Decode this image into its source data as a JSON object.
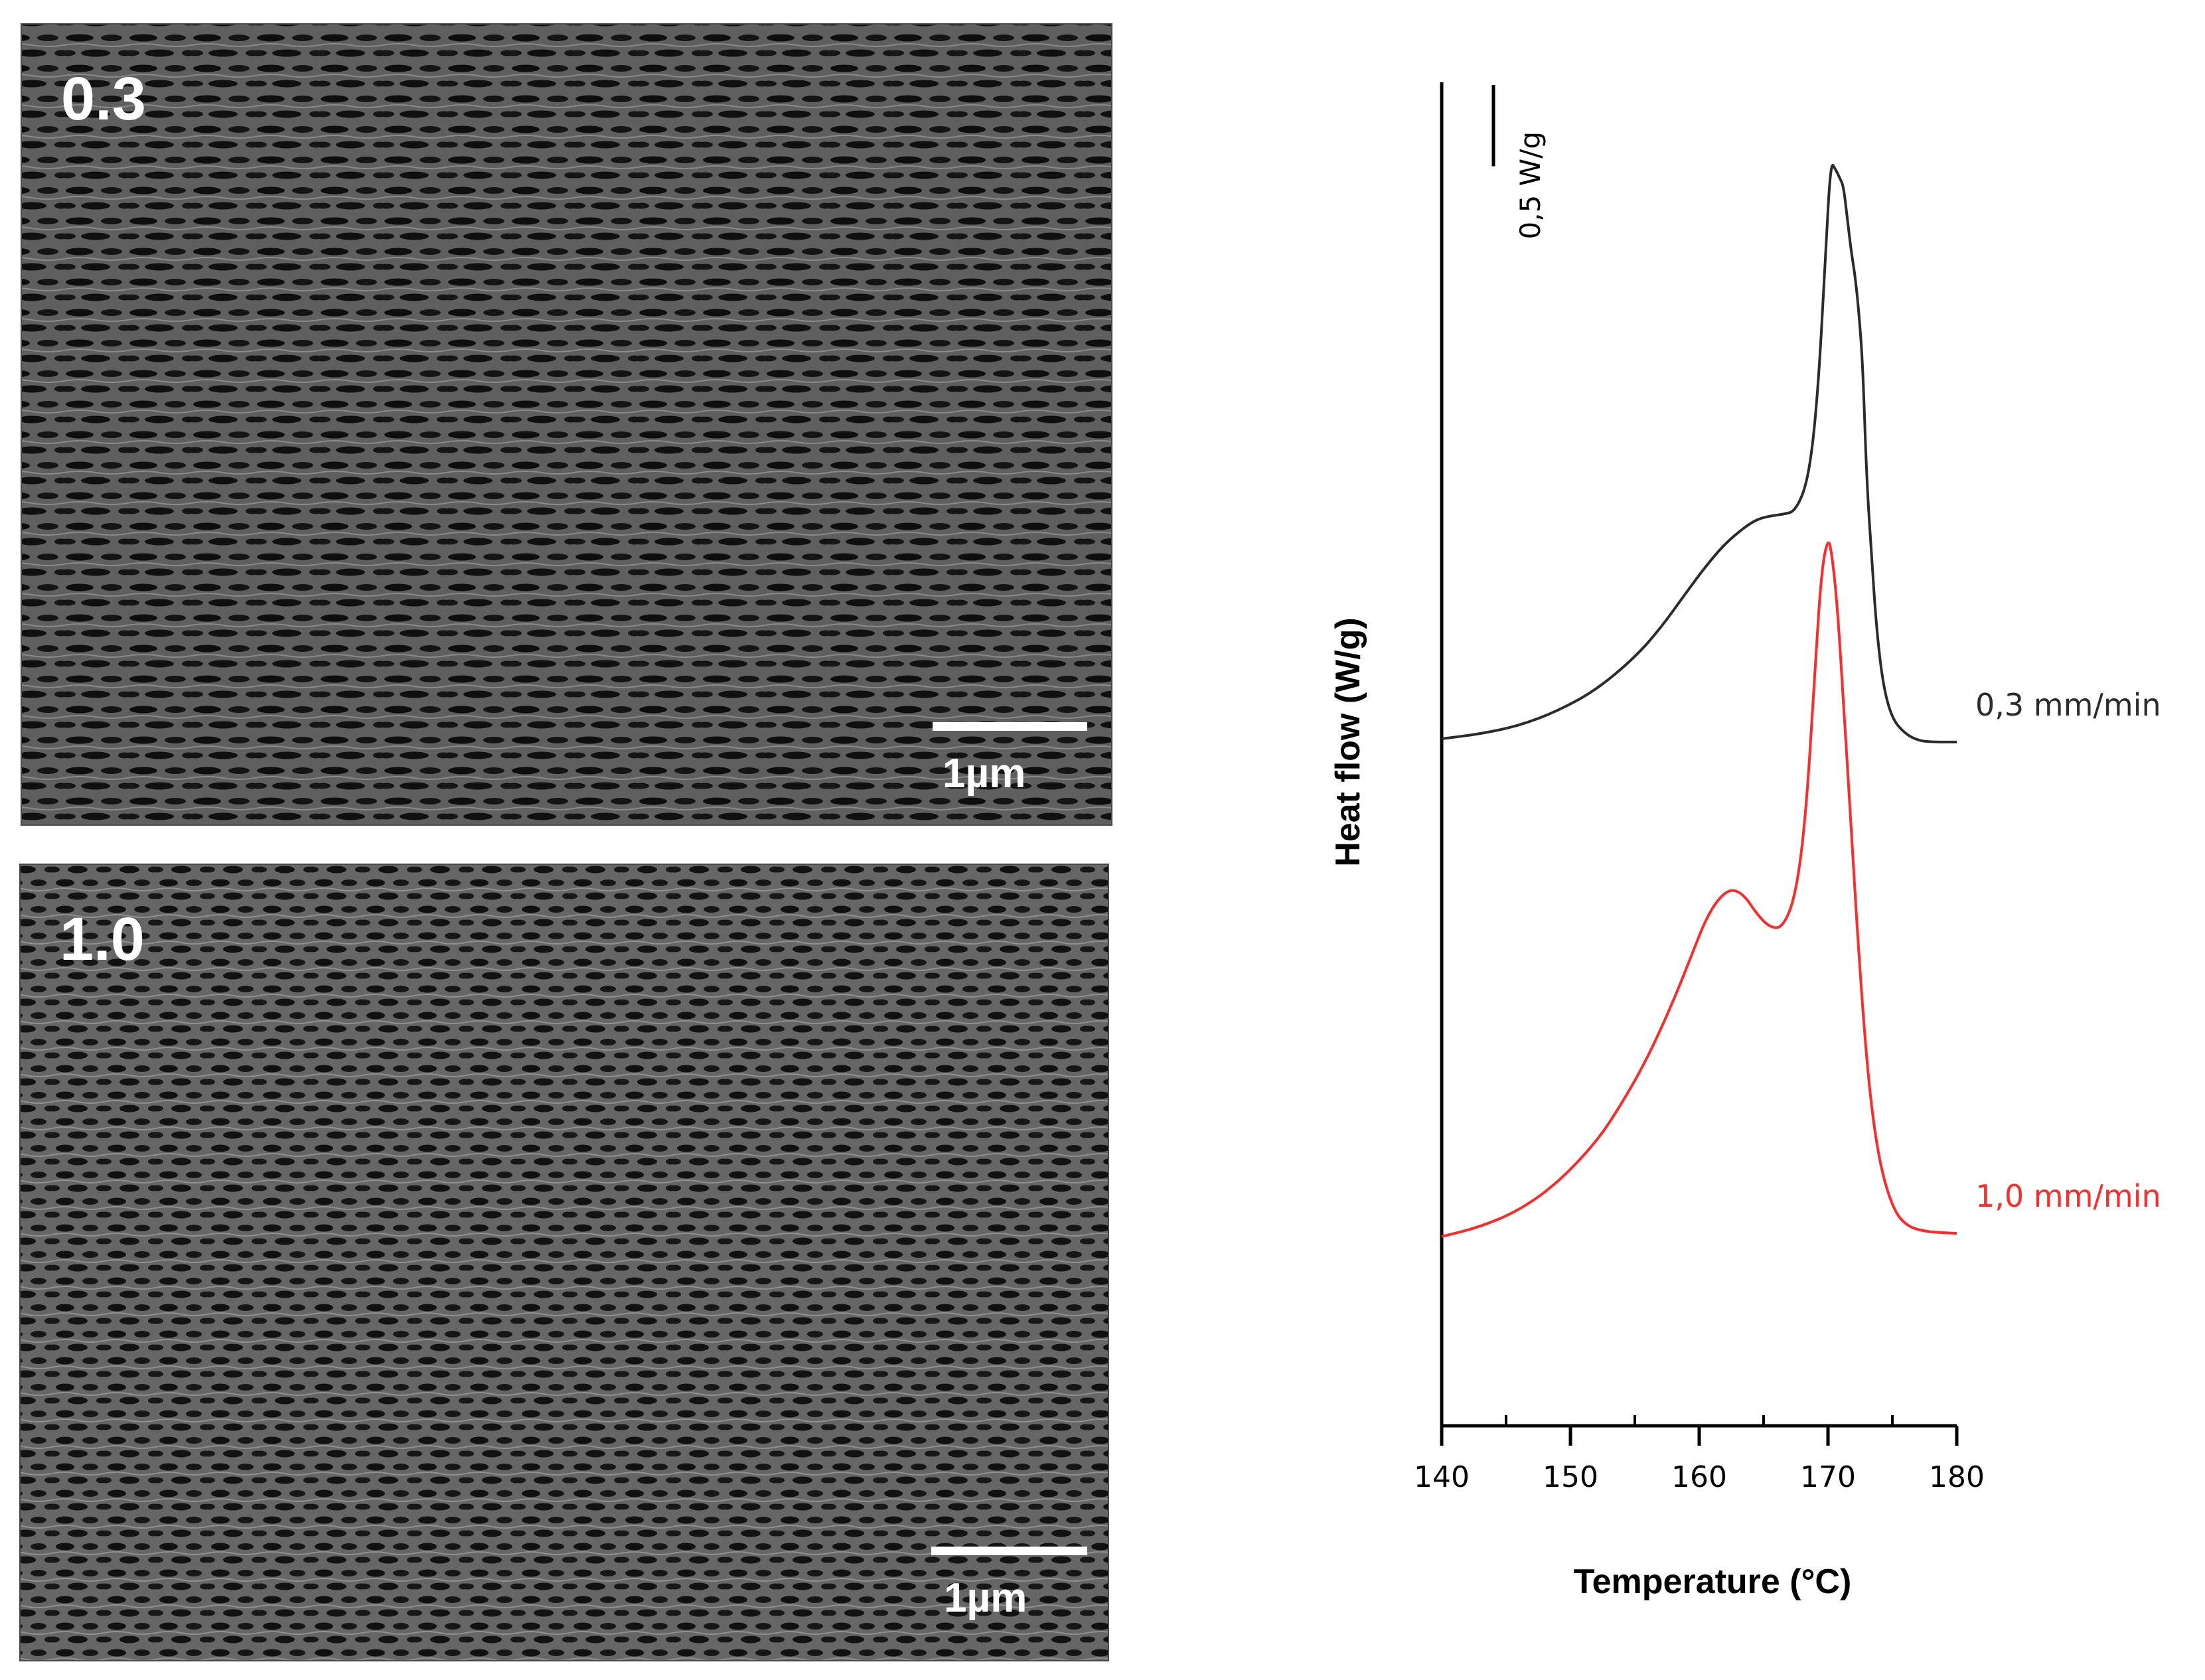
{
  "panels": [
    {
      "label": "0.3",
      "scale_bar": "1µm"
    },
    {
      "label": "1.0",
      "scale_bar": "1µm"
    }
  ],
  "colors": {
    "series_0_3": "#2b2b2b",
    "series_1_0": "#ff2a2a",
    "axis": "#000000"
  },
  "chart_data": {
    "type": "line",
    "xlabel": "Temperature (°C)",
    "ylabel": "Heat flow (W/g)",
    "xlim": [
      140,
      180
    ],
    "x_ticks": [
      140,
      150,
      160,
      170,
      180
    ],
    "x_tick_labels": [
      "140",
      "150",
      "160",
      "170",
      "180"
    ],
    "y_ticks_shown": false,
    "scale_bar_label": "0,5 W/g",
    "scale_bar_value": 0.5,
    "series": [
      {
        "name": "0,3 mm/min",
        "color": "#2b2b2b",
        "x": [
          140,
          143,
          146,
          149,
          152,
          155,
          157,
          159,
          160.5,
          162,
          163.5,
          164.5,
          165.5,
          166.5,
          167.5,
          168.5,
          169.2,
          169.8,
          170.2,
          170.6,
          170.9,
          171.2,
          171.5,
          171.8,
          172.1,
          172.4,
          172.7,
          173,
          173.4,
          173.8,
          174.3,
          175,
          176,
          177,
          178,
          180
        ],
        "y": [
          0.0,
          0.03,
          0.08,
          0.17,
          0.3,
          0.5,
          0.68,
          0.9,
          1.06,
          1.2,
          1.3,
          1.35,
          1.37,
          1.38,
          1.4,
          1.6,
          2.1,
          2.95,
          3.55,
          3.5,
          3.45,
          3.4,
          3.2,
          3.0,
          2.85,
          2.62,
          2.3,
          1.6,
          1.1,
          0.65,
          0.32,
          0.12,
          0.03,
          -0.01,
          -0.02,
          -0.02
        ]
      },
      {
        "name": "1,0 mm/min",
        "color": "#ff2a2a",
        "x": [
          140,
          143,
          146,
          149,
          152,
          154,
          156,
          158,
          159.5,
          160.5,
          161.5,
          162.5,
          163.5,
          164.5,
          165.5,
          166.5,
          167.5,
          168.3,
          169,
          169.5,
          170,
          170.3,
          170.7,
          171.2,
          171.8,
          172.5,
          173.2,
          174,
          175,
          176,
          177.5,
          180
        ],
        "y": [
          0.0,
          0.06,
          0.16,
          0.33,
          0.58,
          0.82,
          1.1,
          1.45,
          1.75,
          1.95,
          2.08,
          2.14,
          2.1,
          1.98,
          1.9,
          1.9,
          2.1,
          2.6,
          3.5,
          4.1,
          4.3,
          4.2,
          3.9,
          3.3,
          2.5,
          1.6,
          0.9,
          0.45,
          0.18,
          0.07,
          0.03,
          0.02
        ]
      }
    ],
    "grid": false
  }
}
